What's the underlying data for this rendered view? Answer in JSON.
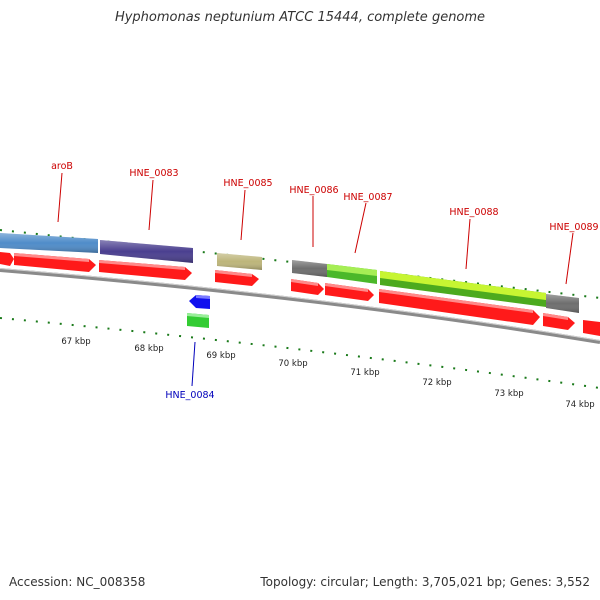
{
  "title": "Hyphomonas neptunium ATCC 15444, complete genome",
  "footer": {
    "accession": "Accession: NC_008358",
    "summary": "Topology: circular; Length: 3,705,021 bp; Genes: 3,552"
  },
  "colors": {
    "backbone": "#8a8a8a",
    "tick": "#1a7a1a",
    "forward_label": "#cc0000",
    "reverse_label": "#0000bb",
    "cds_forward": "#ff1a1a",
    "cds_reverse": "#1010ee"
  },
  "scale": {
    "labels": [
      "67 kbp",
      "68 kbp",
      "69 kbp",
      "70 kbp",
      "71 kbp",
      "72 kbp",
      "73 kbp",
      "74 kbp"
    ]
  },
  "genes": [
    {
      "name": "aroB",
      "strand": "forward",
      "color": "#4f8cc9"
    },
    {
      "name": "HNE_0083",
      "strand": "forward",
      "color": "#4a3f8f"
    },
    {
      "name": "HNE_0084",
      "strand": "reverse",
      "color": "#33cc33"
    },
    {
      "name": "HNE_0085",
      "strand": "forward",
      "color": "#bdb57a"
    },
    {
      "name": "HNE_0086",
      "strand": "forward",
      "color": "#6e6e6e"
    },
    {
      "name": "HNE_0087",
      "strand": "forward",
      "color": "#6ad62a"
    },
    {
      "name": "HNE_0088",
      "strand": "forward",
      "color": "#b7f032"
    },
    {
      "name": "HNE_0089",
      "strand": "forward",
      "color": "#6e6e6e"
    }
  ]
}
